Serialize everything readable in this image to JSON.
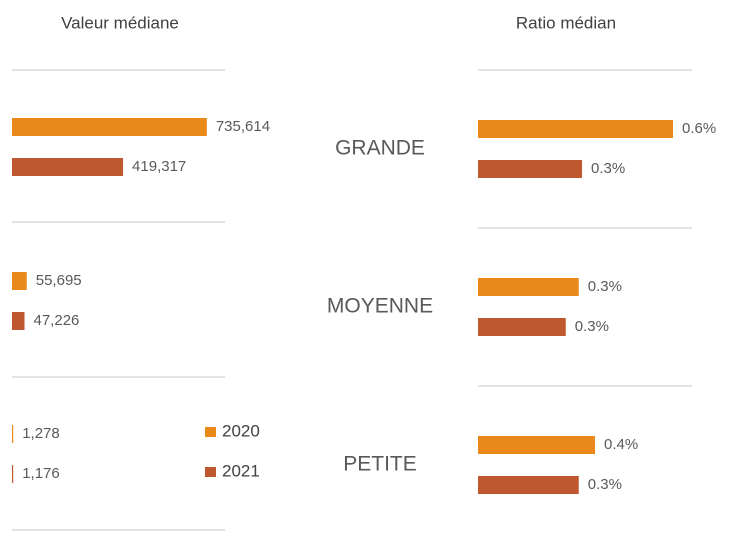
{
  "chart_data": [
    {
      "type": "bar",
      "orientation": "horizontal",
      "title": "Valeur médiane",
      "categories": [
        "GRANDE",
        "MOYENNE",
        "PETITE"
      ],
      "series": [
        {
          "name": "2020",
          "color": "#e8891a",
          "values": [
            735614,
            55695,
            1278
          ],
          "value_labels": [
            "735,614",
            "55,695",
            "1,278"
          ]
        },
        {
          "name": "2021",
          "color": "#c0582f",
          "values": [
            419317,
            47226,
            1176
          ],
          "value_labels": [
            "419,317",
            "47,226",
            "1,176"
          ]
        }
      ],
      "xlim": [
        0,
        740000
      ],
      "legend": "bottom-right"
    },
    {
      "type": "bar",
      "orientation": "horizontal",
      "title": "Ratio médian",
      "series": [
        {
          "name": "2020",
          "color": "#e8891a",
          "values": [
            0.6,
            0.31,
            0.36
          ],
          "value_labels": [
            "0.6%",
            "0.3%",
            "0.4%"
          ]
        },
        {
          "name": "2021",
          "color": "#c0582f",
          "values": [
            0.32,
            0.27,
            0.31
          ],
          "value_labels": [
            "0.3%",
            "0.3%",
            "0.3%"
          ]
        }
      ],
      "xlim": [
        0,
        0.6
      ]
    }
  ]
}
